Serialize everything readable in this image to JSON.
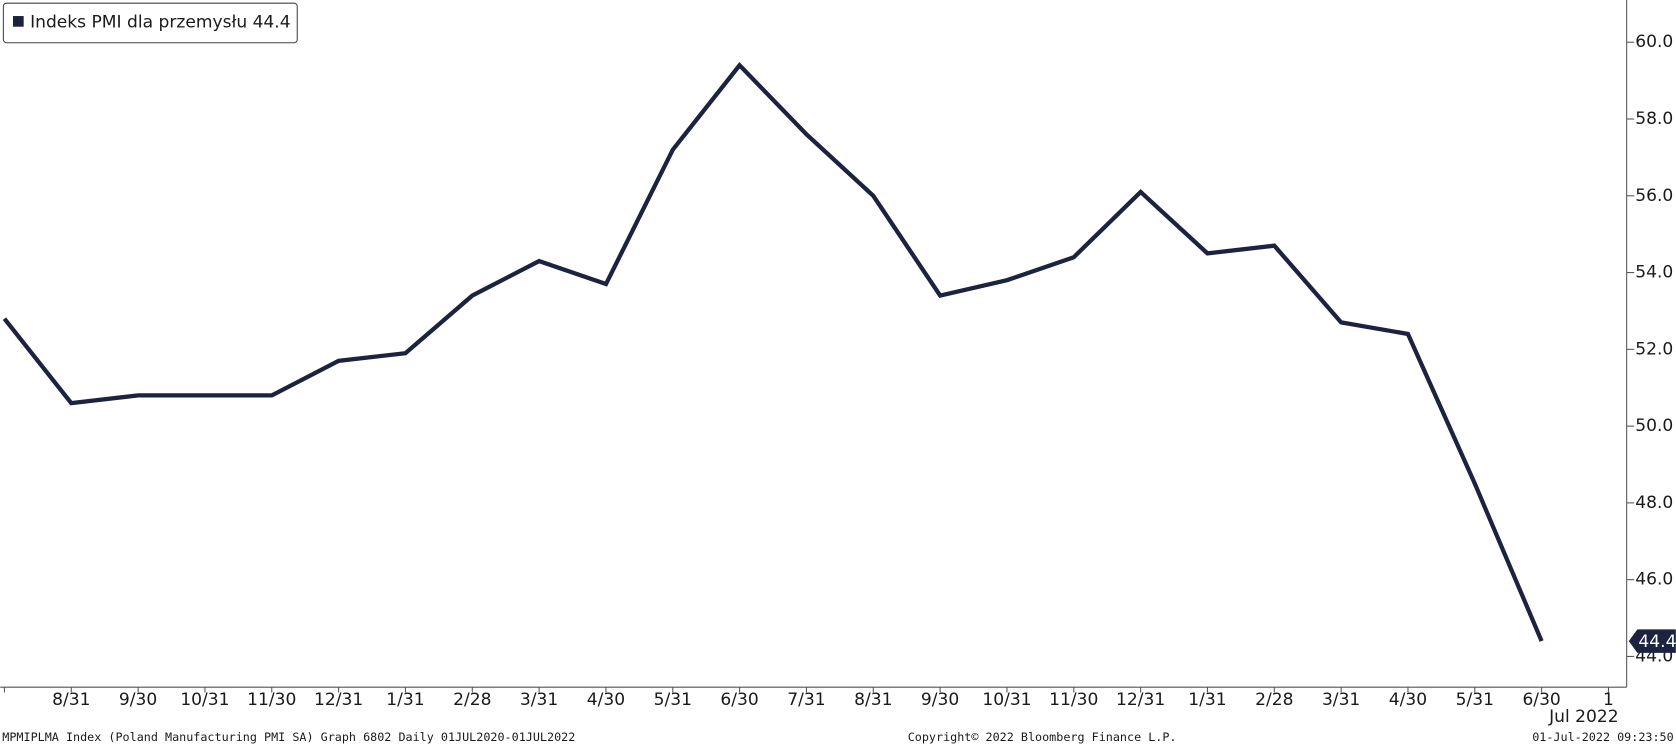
{
  "chart_data": {
    "type": "line",
    "categories": [
      null,
      "8/31",
      "9/30",
      "10/31",
      "11/30",
      "12/31",
      "1/31",
      "2/28",
      "3/31",
      "4/30",
      "5/31",
      "6/30",
      "7/31",
      "8/31",
      "9/30",
      "10/31",
      "11/30",
      "12/31",
      "1/31",
      "2/28",
      "3/31",
      "4/30",
      "5/31",
      "6/30",
      "1"
    ],
    "x_sublabel": "Jul 2022",
    "series": [
      {
        "name": "Indeks PMI dla przemysłu 44.4",
        "color": "#1c2340",
        "values": [
          52.8,
          50.6,
          50.8,
          50.8,
          50.8,
          51.7,
          51.9,
          53.4,
          54.3,
          53.7,
          57.2,
          59.4,
          57.6,
          56.0,
          53.4,
          53.8,
          54.4,
          56.1,
          54.5,
          54.7,
          52.7,
          52.4,
          48.5,
          44.4,
          null
        ]
      }
    ],
    "ylim": [
      43.2,
      61.1
    ],
    "yticks": [
      {
        "value": 44,
        "label": "44.0"
      },
      {
        "value": 46,
        "label": "46.0"
      },
      {
        "value": 48,
        "label": "48.0"
      },
      {
        "value": 50,
        "label": "50.0"
      },
      {
        "value": 52,
        "label": "52.0"
      },
      {
        "value": 54,
        "label": "54.0"
      },
      {
        "value": 56,
        "label": "56.0"
      },
      {
        "value": 58,
        "label": "58.0"
      },
      {
        "value": 60,
        "label": "60.0"
      }
    ],
    "y_axis_side": "right",
    "grid": false,
    "notes": [
      "MPMIPLMA Index (Poland Manufacturing PMI SA) Graph 6802  Daily 01JUL2020-01JUL2022",
      "Copyright© 2022 Bloomberg Finance L.P.",
      "01-Jul-2022 09:23:50"
    ]
  }
}
